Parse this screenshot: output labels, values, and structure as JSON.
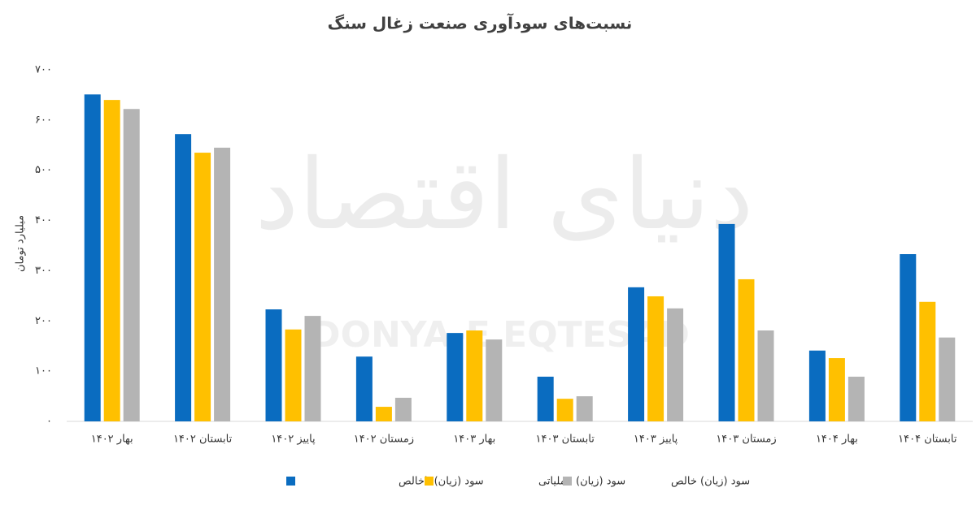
{
  "chart_data": {
    "type": "bar",
    "title": "نسبت‌های سودآوری صنعت زغال سنگ",
    "watermark": [
      "دنیای اقتصاد",
      "DONYA-E EQTESAD"
    ],
    "y_label": "میلیارد تومان",
    "categories": [
      "بهار ۱۴۰۲",
      "تابستان ۱۴۰۲",
      "پاییز ۱۴۰۲",
      "زمستان ۱۴۰۲",
      "بهار ۱۴۰۳",
      "تابستان ۱۴۰۳",
      "پاییز ۱۴۰۳",
      "زمستان ۱۴۰۳",
      "بهار ۱۴۰۴",
      "تابستان ۱۴۰۴"
    ],
    "series": [
      {
        "name": "سود (زیان) ناخالص",
        "color": "#0a6cc0",
        "values": [
          651,
          572,
          223,
          129,
          176,
          89,
          267,
          393,
          141,
          333
        ]
      },
      {
        "name": "سود (زیان) عملیاتی",
        "color": "#ffc000",
        "values": [
          640,
          535,
          183,
          29,
          181,
          45,
          249,
          283,
          126,
          238
        ]
      },
      {
        "name": "سود (زیان) خالص",
        "color": "#b4b4b4",
        "values": [
          622,
          545,
          210,
          47,
          163,
          50,
          225,
          181,
          89,
          167
        ]
      }
    ],
    "ylim": [
      0,
      700
    ],
    "yticks": [
      {
        "value": 0,
        "label": "۰"
      },
      {
        "value": 100,
        "label": "۱۰۰"
      },
      {
        "value": 200,
        "label": "۲۰۰"
      },
      {
        "value": 300,
        "label": "۳۰۰"
      },
      {
        "value": 400,
        "label": "۴۰۰"
      },
      {
        "value": 500,
        "label": "۵۰۰"
      },
      {
        "value": 600,
        "label": "۶۰۰"
      },
      {
        "value": 700,
        "label": "۷۰۰"
      }
    ],
    "grid": false
  }
}
